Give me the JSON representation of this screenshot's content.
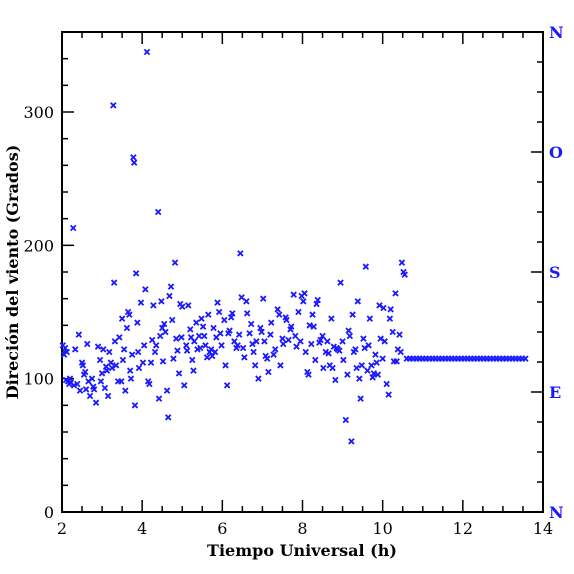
{
  "chart_data": {
    "type": "scatter",
    "title": "",
    "xlabel": "Tiempo Universal (h)",
    "ylabel": "Direción del viento (Grados)",
    "xlim": [
      2,
      14
    ],
    "ylim": [
      0,
      360
    ],
    "x_ticks": [
      "2",
      "4",
      "6",
      "8",
      "10",
      "12",
      "14"
    ],
    "x_tick_values": [
      2,
      4,
      6,
      8,
      10,
      12,
      14
    ],
    "y_ticks": [
      "0",
      "100",
      "200",
      "300"
    ],
    "y_tick_values": [
      0,
      100,
      200,
      300
    ],
    "right_axis_labels": [
      {
        "label": "N",
        "value": 0
      },
      {
        "label": "E",
        "value": 90
      },
      {
        "label": "S",
        "value": 180
      },
      {
        "label": "O",
        "value": 270
      },
      {
        "label": "N",
        "value": 360
      }
    ],
    "marker": "x",
    "marker_color": "#1a1aff",
    "axis_color": "#000000",
    "grid": false,
    "series": [
      {
        "points": [
          [
            2.02,
            125
          ],
          [
            2.05,
            118
          ],
          [
            2.08,
            123
          ],
          [
            2.1,
            99
          ],
          [
            2.12,
            120
          ],
          [
            2.15,
            98
          ],
          [
            2.18,
            96
          ],
          [
            2.2,
            100
          ],
          [
            2.22,
            97
          ],
          [
            2.28,
            213
          ],
          [
            2.3,
            95
          ],
          [
            2.33,
            122
          ],
          [
            2.38,
            96
          ],
          [
            2.42,
            133
          ],
          [
            2.45,
            91
          ],
          [
            2.5,
            112
          ],
          [
            2.52,
            110
          ],
          [
            2.55,
            103
          ],
          [
            2.58,
            105
          ],
          [
            2.6,
            92
          ],
          [
            2.63,
            126
          ],
          [
            2.66,
            98
          ],
          [
            2.7,
            87
          ],
          [
            2.75,
            100
          ],
          [
            2.78,
            94
          ],
          [
            2.8,
            92
          ],
          [
            2.85,
            82
          ],
          [
            2.9,
            124
          ],
          [
            2.95,
            114
          ],
          [
            2.97,
            98
          ],
          [
            3.0,
            104
          ],
          [
            3.03,
            122
          ],
          [
            3.07,
            93
          ],
          [
            3.1,
            109
          ],
          [
            3.12,
            106
          ],
          [
            3.15,
            87
          ],
          [
            3.18,
            120
          ],
          [
            3.22,
            112
          ],
          [
            3.25,
            108
          ],
          [
            3.28,
            305
          ],
          [
            3.3,
            172
          ],
          [
            3.32,
            128
          ],
          [
            3.35,
            110
          ],
          [
            3.4,
            98
          ],
          [
            3.43,
            131
          ],
          [
            3.48,
            98
          ],
          [
            3.5,
            145
          ],
          [
            3.52,
            114
          ],
          [
            3.55,
            122
          ],
          [
            3.58,
            91
          ],
          [
            3.62,
            138
          ],
          [
            3.65,
            150
          ],
          [
            3.68,
            148
          ],
          [
            3.7,
            106
          ],
          [
            3.72,
            100
          ],
          [
            3.75,
            118
          ],
          [
            3.78,
            266
          ],
          [
            3.8,
            262
          ],
          [
            3.82,
            80
          ],
          [
            3.85,
            179
          ],
          [
            3.88,
            142
          ],
          [
            3.9,
            120
          ],
          [
            3.92,
            108
          ],
          [
            3.97,
            157
          ],
          [
            4.02,
            112
          ],
          [
            4.05,
            125
          ],
          [
            4.08,
            167
          ],
          [
            4.12,
            345
          ],
          [
            4.15,
            98
          ],
          [
            4.18,
            96
          ],
          [
            4.22,
            112
          ],
          [
            4.25,
            129
          ],
          [
            4.28,
            155
          ],
          [
            4.32,
            120
          ],
          [
            4.35,
            125
          ],
          [
            4.4,
            225
          ],
          [
            4.42,
            85
          ],
          [
            4.45,
            132
          ],
          [
            4.48,
            158
          ],
          [
            4.5,
            138
          ],
          [
            4.52,
            113
          ],
          [
            4.55,
            141
          ],
          [
            4.58,
            135
          ],
          [
            4.62,
            91
          ],
          [
            4.65,
            71
          ],
          [
            4.68,
            162
          ],
          [
            4.72,
            169
          ],
          [
            4.75,
            144
          ],
          [
            4.78,
            115
          ],
          [
            4.82,
            187
          ],
          [
            4.85,
            130
          ],
          [
            4.88,
            121
          ],
          [
            4.92,
            104
          ],
          [
            4.95,
            156
          ],
          [
            4.98,
            131
          ],
          [
            5.0,
            154
          ],
          [
            5.05,
            95
          ],
          [
            5.1,
            125
          ],
          [
            5.12,
            121
          ],
          [
            5.15,
            155
          ],
          [
            5.2,
            137
          ],
          [
            5.22,
            131
          ],
          [
            5.25,
            114
          ],
          [
            5.28,
            106
          ],
          [
            5.3,
            128
          ],
          [
            5.35,
            142
          ],
          [
            5.38,
            122
          ],
          [
            5.42,
            132
          ],
          [
            5.45,
            123
          ],
          [
            5.48,
            145
          ],
          [
            5.52,
            139
          ],
          [
            5.55,
            132
          ],
          [
            5.58,
            125
          ],
          [
            5.62,
            116
          ],
          [
            5.65,
            148
          ],
          [
            5.68,
            120
          ],
          [
            5.72,
            122
          ],
          [
            5.75,
            117
          ],
          [
            5.78,
            138
          ],
          [
            5.82,
            120
          ],
          [
            5.85,
            131
          ],
          [
            5.88,
            157
          ],
          [
            5.92,
            150
          ],
          [
            5.95,
            134
          ],
          [
            5.98,
            125
          ],
          [
            6.05,
            144
          ],
          [
            6.08,
            110
          ],
          [
            6.12,
            95
          ],
          [
            6.15,
            134
          ],
          [
            6.18,
            136
          ],
          [
            6.22,
            146
          ],
          [
            6.25,
            149
          ],
          [
            6.3,
            128
          ],
          [
            6.35,
            123
          ],
          [
            6.38,
            125
          ],
          [
            6.42,
            133
          ],
          [
            6.45,
            194
          ],
          [
            6.48,
            161
          ],
          [
            6.52,
            123
          ],
          [
            6.55,
            116
          ],
          [
            6.6,
            158
          ],
          [
            6.62,
            149
          ],
          [
            6.68,
            134
          ],
          [
            6.72,
            141
          ],
          [
            6.75,
            126
          ],
          [
            6.78,
            120
          ],
          [
            6.82,
            110
          ],
          [
            6.85,
            128
          ],
          [
            6.9,
            100
          ],
          [
            6.95,
            138
          ],
          [
            6.98,
            135
          ],
          [
            7.02,
            160
          ],
          [
            7.05,
            128
          ],
          [
            7.08,
            117
          ],
          [
            7.12,
            115
          ],
          [
            7.15,
            105
          ],
          [
            7.2,
            133
          ],
          [
            7.22,
            142
          ],
          [
            7.28,
            118
          ],
          [
            7.32,
            122
          ],
          [
            7.38,
            152
          ],
          [
            7.42,
            148
          ],
          [
            7.45,
            110
          ],
          [
            7.5,
            130
          ],
          [
            7.52,
            126
          ],
          [
            7.58,
            146
          ],
          [
            7.6,
            144
          ],
          [
            7.65,
            129
          ],
          [
            7.7,
            137
          ],
          [
            7.72,
            139
          ],
          [
            7.78,
            163
          ],
          [
            7.82,
            132
          ],
          [
            7.85,
            124
          ],
          [
            7.9,
            150
          ],
          [
            7.95,
            128
          ],
          [
            7.98,
            162
          ],
          [
            8.02,
            158
          ],
          [
            8.05,
            164
          ],
          [
            8.08,
            120
          ],
          [
            8.12,
            105
          ],
          [
            8.15,
            103
          ],
          [
            8.18,
            140
          ],
          [
            8.22,
            126
          ],
          [
            8.25,
            148
          ],
          [
            8.28,
            139
          ],
          [
            8.32,
            114
          ],
          [
            8.35,
            156
          ],
          [
            8.38,
            159
          ],
          [
            8.42,
            127
          ],
          [
            8.45,
            129
          ],
          [
            8.5,
            132
          ],
          [
            8.52,
            108
          ],
          [
            8.58,
            120
          ],
          [
            8.62,
            128
          ],
          [
            8.65,
            119
          ],
          [
            8.68,
            110
          ],
          [
            8.72,
            145
          ],
          [
            8.75,
            108
          ],
          [
            8.78,
            124
          ],
          [
            8.82,
            99
          ],
          [
            8.85,
            123
          ],
          [
            8.88,
            122
          ],
          [
            8.92,
            121
          ],
          [
            8.95,
            172
          ],
          [
            9.0,
            128
          ],
          [
            9.02,
            114
          ],
          [
            9.08,
            69
          ],
          [
            9.12,
            103
          ],
          [
            9.15,
            136
          ],
          [
            9.18,
            132
          ],
          [
            9.22,
            53
          ],
          [
            9.25,
            148
          ],
          [
            9.28,
            120
          ],
          [
            9.32,
            122
          ],
          [
            9.35,
            108
          ],
          [
            9.38,
            158
          ],
          [
            9.42,
            100
          ],
          [
            9.45,
            85
          ],
          [
            9.48,
            110
          ],
          [
            9.52,
            130
          ],
          [
            9.55,
            123
          ],
          [
            9.58,
            184
          ],
          [
            9.62,
            106
          ],
          [
            9.65,
            125
          ],
          [
            9.68,
            145
          ],
          [
            9.72,
            110
          ],
          [
            9.75,
            101
          ],
          [
            9.78,
            104
          ],
          [
            9.82,
            118
          ],
          [
            9.85,
            112
          ],
          [
            9.88,
            103
          ],
          [
            9.92,
            155
          ],
          [
            9.95,
            130
          ],
          [
            10.0,
            115
          ],
          [
            10.02,
            153
          ],
          [
            10.05,
            128
          ],
          [
            10.1,
            96
          ],
          [
            10.15,
            88
          ],
          [
            10.18,
            145
          ],
          [
            10.2,
            152
          ],
          [
            10.25,
            135
          ],
          [
            10.28,
            113
          ],
          [
            10.32,
            164
          ],
          [
            10.35,
            113
          ],
          [
            10.38,
            122
          ],
          [
            10.42,
            133
          ],
          [
            10.45,
            120
          ],
          [
            10.48,
            187
          ],
          [
            10.52,
            180
          ],
          [
            10.55,
            178
          ]
        ]
      },
      {
        "points": [
          [
            10.6,
            115
          ],
          [
            10.68,
            115
          ],
          [
            10.76,
            115
          ],
          [
            10.84,
            115
          ],
          [
            10.92,
            115
          ],
          [
            11.0,
            115
          ],
          [
            11.08,
            115
          ],
          [
            11.16,
            115
          ],
          [
            11.24,
            115
          ],
          [
            11.32,
            115
          ],
          [
            11.4,
            115
          ],
          [
            11.48,
            115
          ],
          [
            11.56,
            115
          ],
          [
            11.64,
            115
          ],
          [
            11.72,
            115
          ],
          [
            11.8,
            115
          ],
          [
            11.88,
            115
          ],
          [
            11.96,
            115
          ],
          [
            12.04,
            115
          ],
          [
            12.12,
            115
          ],
          [
            12.2,
            115
          ],
          [
            12.28,
            115
          ],
          [
            12.36,
            115
          ],
          [
            12.44,
            115
          ],
          [
            12.52,
            115
          ],
          [
            12.6,
            115
          ],
          [
            12.68,
            115
          ],
          [
            12.76,
            115
          ],
          [
            12.84,
            115
          ],
          [
            12.92,
            115
          ],
          [
            13.0,
            115
          ],
          [
            13.08,
            115
          ],
          [
            13.16,
            115
          ],
          [
            13.24,
            115
          ],
          [
            13.32,
            115
          ],
          [
            13.4,
            115
          ],
          [
            13.48,
            115
          ],
          [
            13.56,
            115
          ]
        ]
      }
    ]
  }
}
